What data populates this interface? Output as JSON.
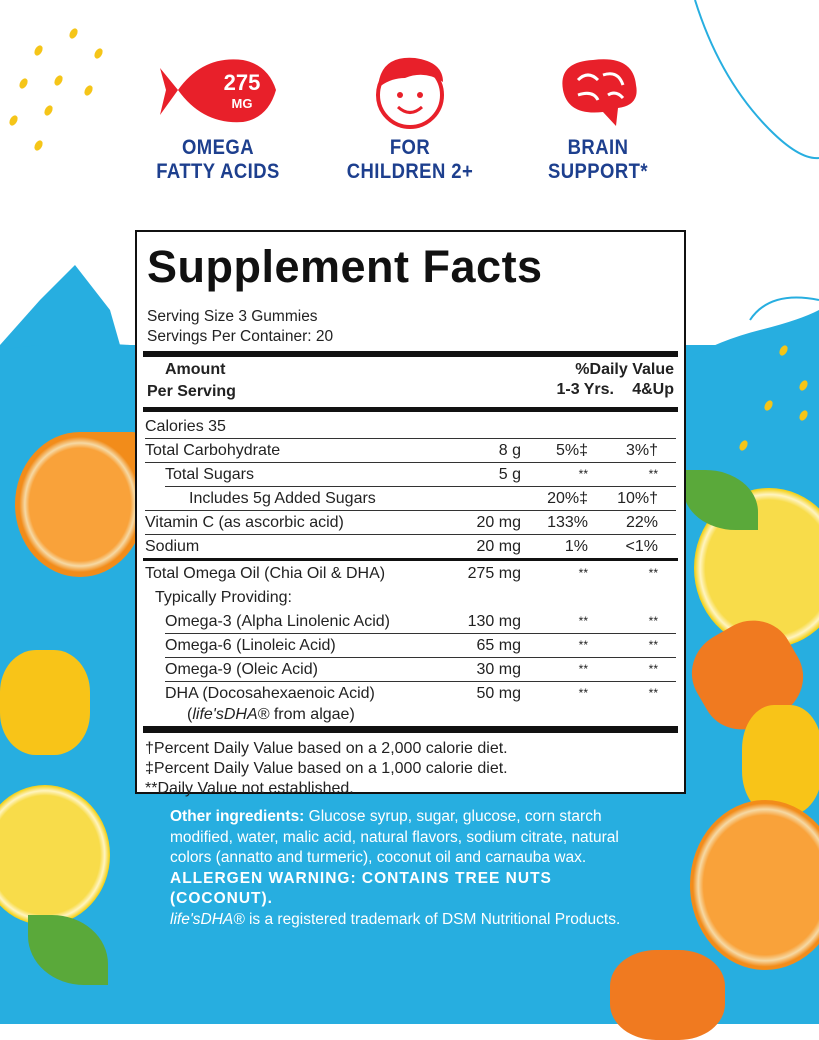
{
  "badges": [
    {
      "icon": "fish-icon",
      "icon_text_top": "275",
      "icon_text_bottom": "MG",
      "line1": "OMEGA",
      "line2": "FATTY ACIDS"
    },
    {
      "icon": "child-face-icon",
      "line1": "FOR",
      "line2": "CHILDREN 2+"
    },
    {
      "icon": "brain-icon",
      "line1": "BRAIN",
      "line2": "SUPPORT*"
    }
  ],
  "colors": {
    "accent_red": "#e8202a",
    "navy_text": "#1d3f8e",
    "background_blue": "#27aee0"
  },
  "facts": {
    "title": "Supplement Facts",
    "serving_size": "Serving Size 3 Gummies",
    "servings_per_container": "Servings Per Container: 20",
    "header": {
      "amount_line1": "Amount",
      "amount_line2": "Per Serving",
      "dv_line1": "%Daily Value",
      "dv_col1": "1-3 Yrs.",
      "dv_col2": "4&Up"
    },
    "rows": [
      {
        "name": "Calories  35",
        "amount": "",
        "dv1": "",
        "dv2": ""
      },
      {
        "name": "Total Carbohydrate",
        "amount": "8 g",
        "dv1": "5%‡",
        "dv2": "3%†"
      },
      {
        "name": "Total Sugars",
        "amount": "5 g",
        "dv1": "**",
        "dv2": "**"
      },
      {
        "name": "Includes 5g Added Sugars",
        "amount": "",
        "dv1": "20%‡",
        "dv2": "10%†"
      },
      {
        "name": "Vitamin C (as ascorbic acid)",
        "amount": "20 mg",
        "dv1": "133%",
        "dv2": "22%"
      },
      {
        "name": "Sodium",
        "amount": "20 mg",
        "dv1": "1%",
        "dv2": "<1%"
      }
    ],
    "rows2": [
      {
        "name": "Total Omega Oil (Chia Oil & DHA)",
        "amount": "275 mg",
        "dv1": "**",
        "dv2": "**"
      },
      {
        "name": "Typically Providing:",
        "amount": "",
        "dv1": "",
        "dv2": ""
      },
      {
        "name": "Omega-3 (Alpha Linolenic Acid)",
        "amount": "130 mg",
        "dv1": "**",
        "dv2": "**"
      },
      {
        "name": "Omega-6 (Linoleic Acid)",
        "amount": "65 mg",
        "dv1": "**",
        "dv2": "**"
      },
      {
        "name": "Omega-9 (Oleic Acid)",
        "amount": "30 mg",
        "dv1": "**",
        "dv2": "**"
      },
      {
        "name": "DHA (Docosahexaenoic Acid)",
        "amount": "50 mg",
        "dv1": "**",
        "dv2": "**"
      }
    ],
    "dha_source_brand": "life'sDHA®",
    "dha_source_rest": " from algae)",
    "footnotes": [
      "†Percent Daily Value based on a 2,000 calorie diet.",
      "‡Percent Daily Value based on a 1,000 calorie diet.",
      "**Daily Value not established."
    ]
  },
  "ingredients": {
    "label": "Other ingredients:",
    "text": " Glucose syrup, sugar, glucose, corn starch modified, water, malic acid, natural flavors, sodium citrate, natural colors (annatto and turmeric), coconut oil and carnauba wax.",
    "allergen": "ALLERGEN WARNING: CONTAINS TREE NUTS (COCONUT).",
    "trademark_brand": "life'sDHA®",
    "trademark_rest": " is a registered trademark of DSM Nutritional Products."
  }
}
